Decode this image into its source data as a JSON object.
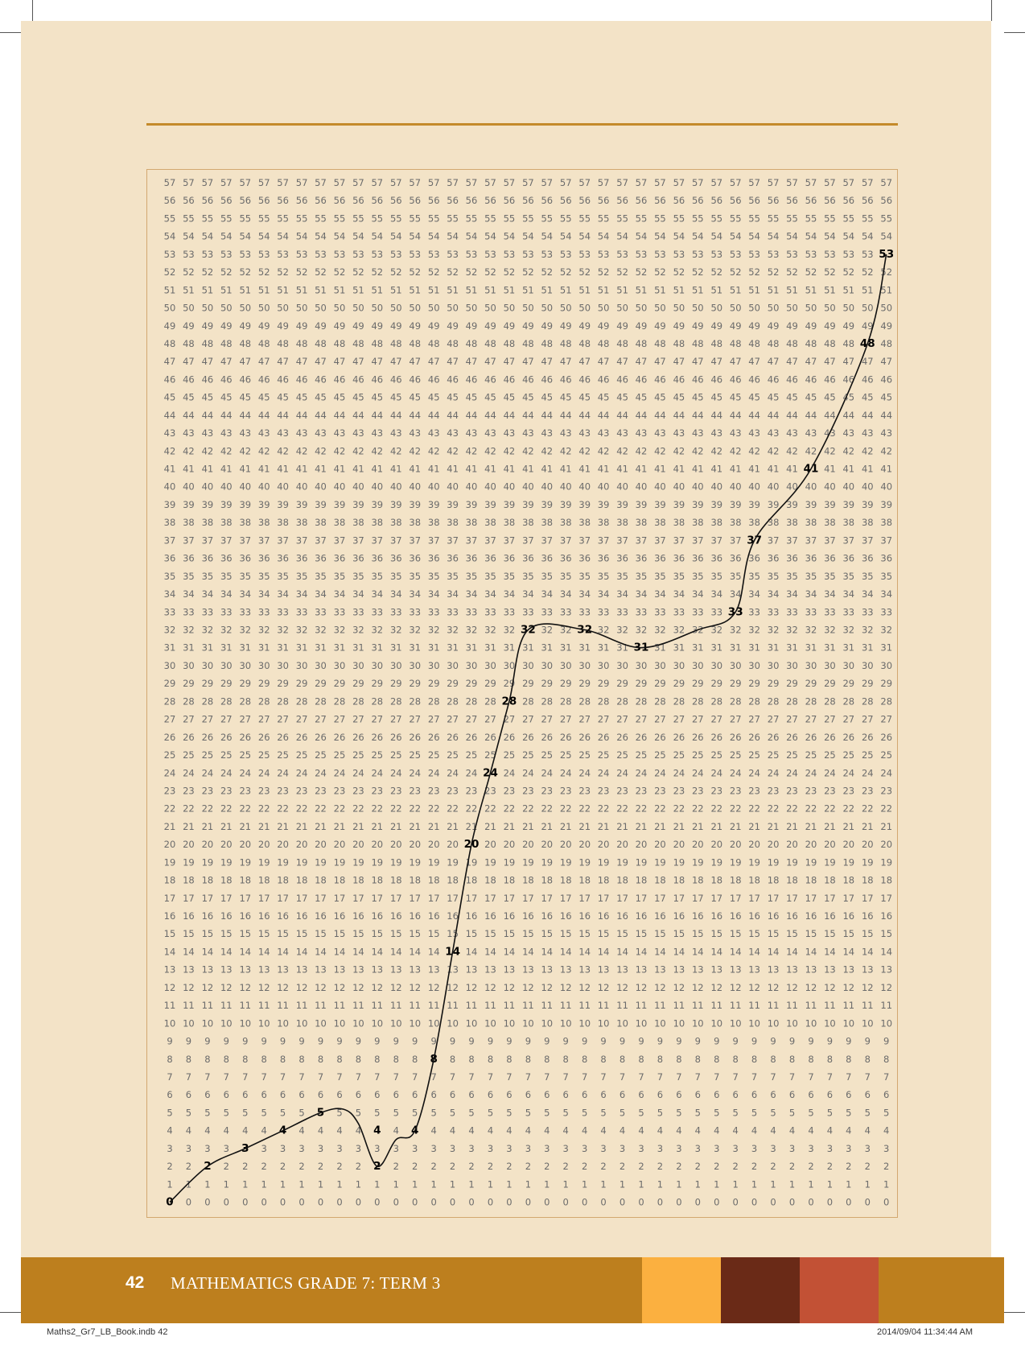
{
  "footer": {
    "page_number": "42",
    "title": "MATHEMATICS GRADE 7: TERM 3",
    "swatch_colors": [
      "#fbb040",
      "#6a2a17",
      "#c25135"
    ]
  },
  "slug": {
    "file": "Maths2_Gr7_LB_Book.indb   42",
    "timestamp": "2014/09/04   11:34:44 AM"
  },
  "number_grid": {
    "rows": 58,
    "columns": 39,
    "row_values_top_to_bottom": "57 down to 0; every cell in a row repeats the row value",
    "highlighted_values": [
      {
        "col": 0,
        "value": 0
      },
      {
        "col": 2,
        "value": 2
      },
      {
        "col": 4,
        "value": 3
      },
      {
        "col": 6,
        "value": 4
      },
      {
        "col": 8,
        "value": 5
      },
      {
        "col": 11,
        "value": 2
      },
      {
        "col": 11,
        "value": 4
      },
      {
        "col": 13,
        "value": 4
      },
      {
        "col": 14,
        "value": 8
      },
      {
        "col": 15,
        "value": 14
      },
      {
        "col": 16,
        "value": 20
      },
      {
        "col": 17,
        "value": 24
      },
      {
        "col": 18,
        "value": 28
      },
      {
        "col": 19,
        "value": 32
      },
      {
        "col": 22,
        "value": 32
      },
      {
        "col": 25,
        "value": 31
      },
      {
        "col": 30,
        "value": 33
      },
      {
        "col": 31,
        "value": 37
      },
      {
        "col": 34,
        "value": 41
      },
      {
        "col": 37,
        "value": 48
      },
      {
        "col": 38,
        "value": 53
      }
    ],
    "curve_through": [
      [
        0,
        0
      ],
      [
        2,
        2
      ],
      [
        4,
        3
      ],
      [
        6,
        4
      ],
      [
        8,
        5
      ],
      [
        9.2,
        5.2
      ],
      [
        10,
        4.4
      ],
      [
        11,
        2
      ],
      [
        12,
        3.5
      ],
      [
        13,
        4
      ],
      [
        14,
        8
      ],
      [
        15,
        14
      ],
      [
        16,
        20
      ],
      [
        17,
        24
      ],
      [
        18,
        28
      ],
      [
        19,
        32
      ],
      [
        22,
        32
      ],
      [
        25,
        31
      ],
      [
        28,
        32
      ],
      [
        30,
        33
      ],
      [
        31,
        37
      ],
      [
        34,
        41
      ],
      [
        37,
        48
      ],
      [
        38,
        53
      ]
    ]
  }
}
